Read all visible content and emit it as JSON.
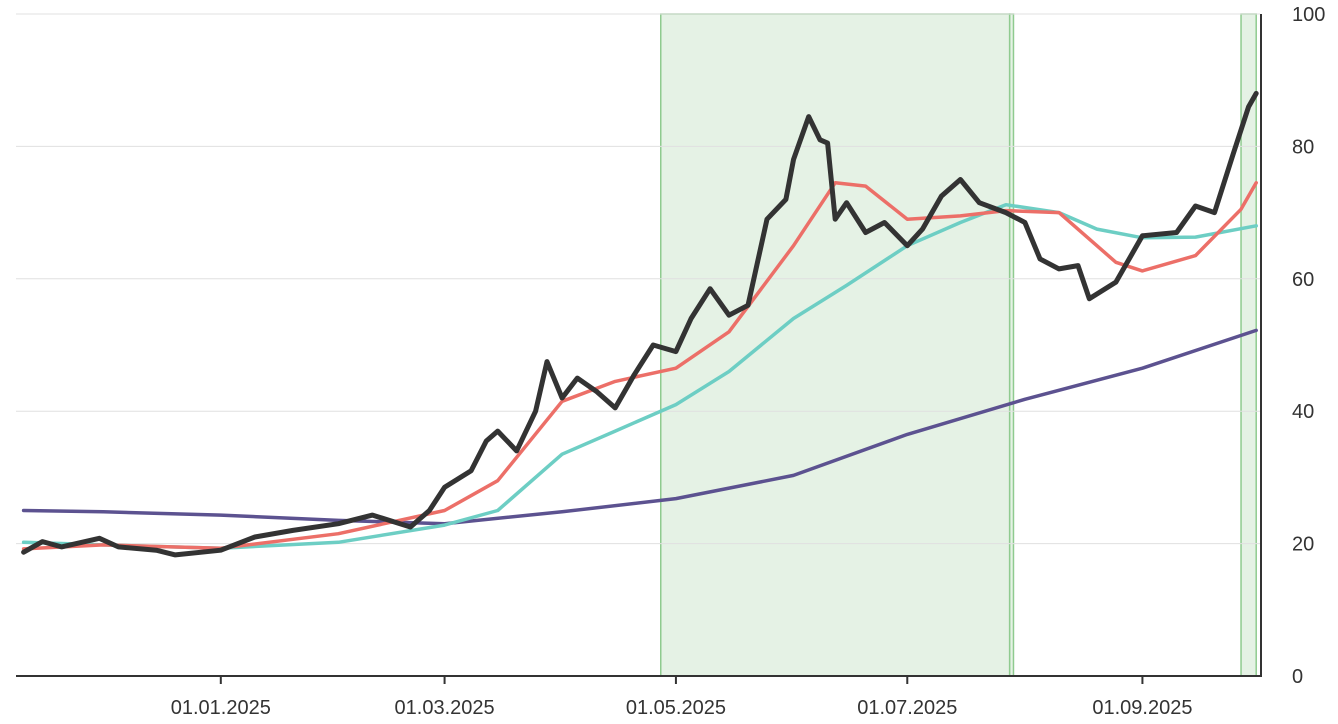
{
  "chart_data": {
    "type": "line",
    "title": "",
    "xlabel": "",
    "ylabel": "",
    "x_range": [
      "2024-11-08",
      "2025-10-02"
    ],
    "ylim": [
      0,
      100
    ],
    "y_ticks": [
      0,
      20,
      40,
      60,
      80,
      100
    ],
    "y_axis_position": "right",
    "grid": "horizontal",
    "legend": "none",
    "x_ticks": [
      {
        "date": "2025-01-01",
        "label": "01.01.2025"
      },
      {
        "date": "2025-03-01",
        "label": "01.03.2025"
      },
      {
        "date": "2025-05-01",
        "label": "01.05.2025"
      },
      {
        "date": "2025-07-01",
        "label": "01.07.2025"
      },
      {
        "date": "2025-09-01",
        "label": "01.09.2025"
      }
    ],
    "highlight_ranges": [
      {
        "start": "2025-04-27",
        "end": "2025-07-28",
        "color": "#e5f2e5",
        "border": "#8fcb8f"
      },
      {
        "start": "2025-07-28",
        "end": "2025-07-29",
        "color": "#e5f2e5",
        "border": "#8fcb8f"
      },
      {
        "start": "2025-09-27",
        "end": "2025-10-01",
        "color": "#e5f2e5",
        "border": "#8fcb8f"
      }
    ],
    "series": [
      {
        "color": "#5c5290",
        "width": 3.5,
        "points": [
          [
            "2024-11-10",
            25.0
          ],
          [
            "2024-12-01",
            24.8
          ],
          [
            "2025-01-01",
            24.3
          ],
          [
            "2025-02-01",
            23.5
          ],
          [
            "2025-03-01",
            23.0
          ],
          [
            "2025-04-01",
            24.8
          ],
          [
            "2025-05-01",
            26.8
          ],
          [
            "2025-06-01",
            30.3
          ],
          [
            "2025-07-01",
            36.5
          ],
          [
            "2025-08-01",
            41.8
          ],
          [
            "2025-09-01",
            46.5
          ],
          [
            "2025-10-01",
            52.2
          ]
        ]
      },
      {
        "color": "#6dcec4",
        "width": 3.5,
        "points": [
          [
            "2024-11-10",
            20.2
          ],
          [
            "2024-12-01",
            19.8
          ],
          [
            "2025-01-01",
            19.3
          ],
          [
            "2025-02-01",
            20.2
          ],
          [
            "2025-03-01",
            22.8
          ],
          [
            "2025-03-15",
            25.0
          ],
          [
            "2025-04-01",
            33.5
          ],
          [
            "2025-04-15",
            37.0
          ],
          [
            "2025-05-01",
            41.0
          ],
          [
            "2025-05-15",
            46.0
          ],
          [
            "2025-06-01",
            54.0
          ],
          [
            "2025-06-15",
            59.0
          ],
          [
            "2025-07-01",
            65.0
          ],
          [
            "2025-07-15",
            68.5
          ],
          [
            "2025-07-27",
            71.2
          ],
          [
            "2025-08-10",
            70.0
          ],
          [
            "2025-08-20",
            67.5
          ],
          [
            "2025-09-01",
            66.2
          ],
          [
            "2025-09-15",
            66.3
          ],
          [
            "2025-10-01",
            68.0
          ]
        ]
      },
      {
        "color": "#ec6f68",
        "width": 3.5,
        "points": [
          [
            "2024-11-10",
            19.2
          ],
          [
            "2024-12-01",
            19.8
          ],
          [
            "2025-01-01",
            19.3
          ],
          [
            "2025-02-01",
            21.5
          ],
          [
            "2025-03-01",
            25.0
          ],
          [
            "2025-03-15",
            29.5
          ],
          [
            "2025-04-01",
            41.5
          ],
          [
            "2025-04-15",
            44.5
          ],
          [
            "2025-05-01",
            46.5
          ],
          [
            "2025-05-15",
            52.0
          ],
          [
            "2025-06-01",
            65.0
          ],
          [
            "2025-06-12",
            74.5
          ],
          [
            "2025-06-20",
            74.0
          ],
          [
            "2025-07-01",
            69.0
          ],
          [
            "2025-07-15",
            69.5
          ],
          [
            "2025-07-27",
            70.3
          ],
          [
            "2025-08-10",
            70.0
          ],
          [
            "2025-08-25",
            62.5
          ],
          [
            "2025-09-01",
            61.2
          ],
          [
            "2025-09-15",
            63.5
          ],
          [
            "2025-09-27",
            70.5
          ],
          [
            "2025-10-01",
            74.5
          ]
        ]
      },
      {
        "color": "#333333",
        "width": 5,
        "points": [
          [
            "2024-11-10",
            18.7
          ],
          [
            "2024-11-15",
            20.3
          ],
          [
            "2024-11-20",
            19.5
          ],
          [
            "2024-11-30",
            20.8
          ],
          [
            "2024-12-05",
            19.5
          ],
          [
            "2024-12-15",
            19.0
          ],
          [
            "2024-12-20",
            18.3
          ],
          [
            "2025-01-01",
            19.0
          ],
          [
            "2025-01-10",
            21.0
          ],
          [
            "2025-01-20",
            22.0
          ],
          [
            "2025-02-01",
            23.0
          ],
          [
            "2025-02-10",
            24.3
          ],
          [
            "2025-02-20",
            22.5
          ],
          [
            "2025-02-25",
            25.0
          ],
          [
            "2025-03-01",
            28.5
          ],
          [
            "2025-03-08",
            31.0
          ],
          [
            "2025-03-12",
            35.5
          ],
          [
            "2025-03-15",
            37.0
          ],
          [
            "2025-03-20",
            34.0
          ],
          [
            "2025-03-25",
            40.0
          ],
          [
            "2025-03-28",
            47.5
          ],
          [
            "2025-04-01",
            42.0
          ],
          [
            "2025-04-05",
            45.0
          ],
          [
            "2025-04-10",
            43.0
          ],
          [
            "2025-04-15",
            40.5
          ],
          [
            "2025-04-20",
            45.5
          ],
          [
            "2025-04-25",
            50.0
          ],
          [
            "2025-05-01",
            49.0
          ],
          [
            "2025-05-05",
            54.0
          ],
          [
            "2025-05-10",
            58.5
          ],
          [
            "2025-05-15",
            54.5
          ],
          [
            "2025-05-20",
            56.0
          ],
          [
            "2025-05-25",
            69.0
          ],
          [
            "2025-05-30",
            72.0
          ],
          [
            "2025-06-01",
            78.0
          ],
          [
            "2025-06-05",
            84.5
          ],
          [
            "2025-06-08",
            81.0
          ],
          [
            "2025-06-10",
            80.5
          ],
          [
            "2025-06-12",
            69.0
          ],
          [
            "2025-06-15",
            71.5
          ],
          [
            "2025-06-20",
            67.0
          ],
          [
            "2025-06-25",
            68.5
          ],
          [
            "2025-07-01",
            65.0
          ],
          [
            "2025-07-05",
            67.5
          ],
          [
            "2025-07-10",
            72.5
          ],
          [
            "2025-07-15",
            75.0
          ],
          [
            "2025-07-20",
            71.5
          ],
          [
            "2025-07-27",
            70.0
          ],
          [
            "2025-08-01",
            68.5
          ],
          [
            "2025-08-05",
            63.0
          ],
          [
            "2025-08-10",
            61.5
          ],
          [
            "2025-08-15",
            62.0
          ],
          [
            "2025-08-18",
            57.0
          ],
          [
            "2025-08-25",
            59.5
          ],
          [
            "2025-09-01",
            66.5
          ],
          [
            "2025-09-10",
            67.0
          ],
          [
            "2025-09-15",
            71.0
          ],
          [
            "2025-09-20",
            70.0
          ],
          [
            "2025-09-25",
            79.0
          ],
          [
            "2025-09-29",
            86.0
          ],
          [
            "2025-10-01",
            88.0
          ]
        ]
      }
    ]
  }
}
